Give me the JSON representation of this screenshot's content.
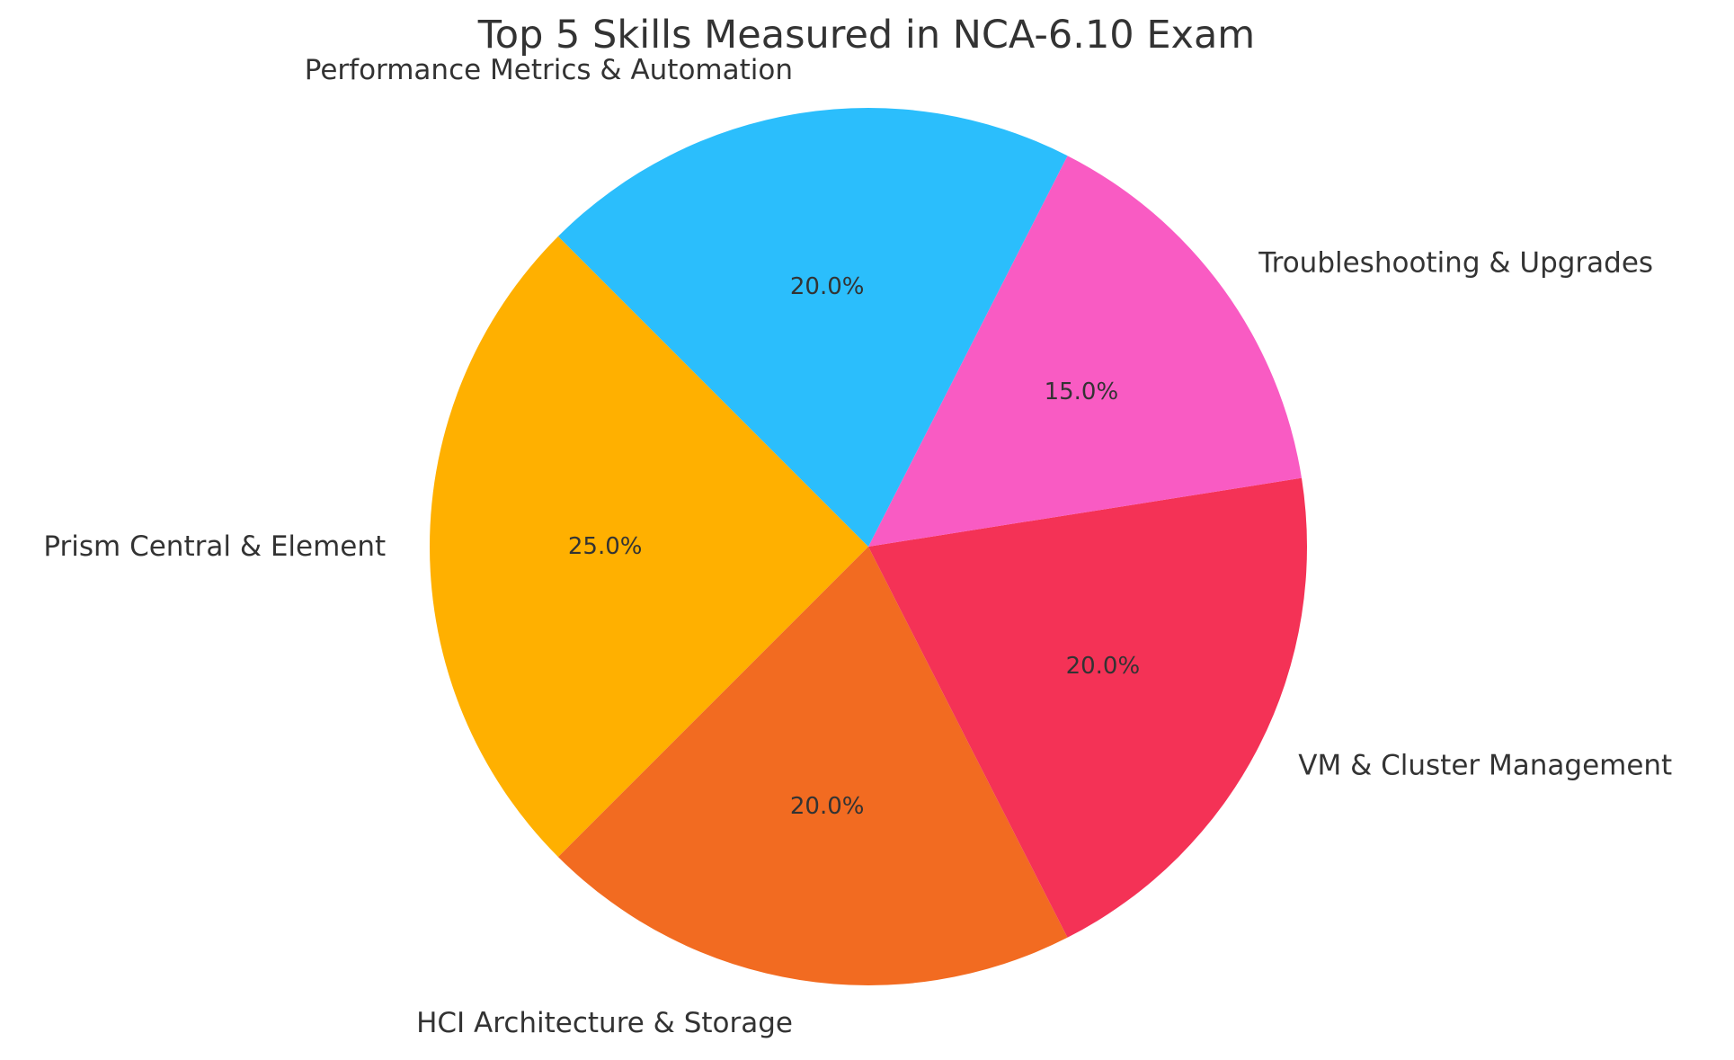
{
  "chart_data": {
    "type": "pie",
    "title": "Top 5 Skills Measured in NCA-6.10 Exam",
    "start_angle_deg": 135,
    "direction": "counterclockwise",
    "slices": [
      {
        "label": "Prism Central & Element",
        "value": 25,
        "pct_label": "25.0%",
        "color": "#FFB000"
      },
      {
        "label": "HCI Architecture & Storage",
        "value": 20,
        "pct_label": "20.0%",
        "color": "#F26B21"
      },
      {
        "label": "VM & Cluster Management",
        "value": 20,
        "pct_label": "20.0%",
        "color": "#F43256"
      },
      {
        "label": "Troubleshooting & Upgrades",
        "value": 15,
        "pct_label": "15.0%",
        "color": "#F95BC3"
      },
      {
        "label": "Performance Metrics & Automation",
        "value": 20,
        "pct_label": "20.0%",
        "color": "#2BBEFC"
      }
    ]
  }
}
